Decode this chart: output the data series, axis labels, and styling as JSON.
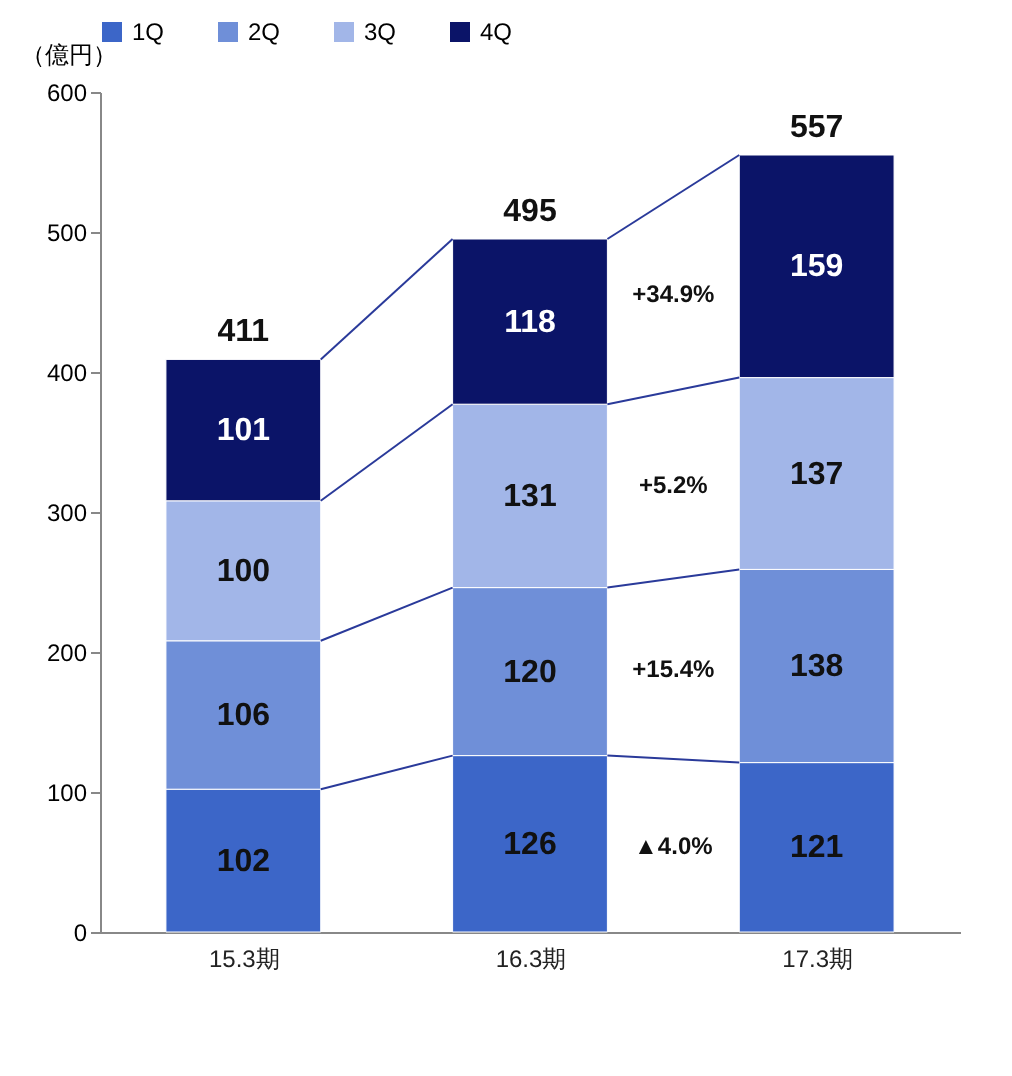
{
  "chart_data": {
    "type": "bar",
    "stacked": true,
    "ylabel": "（億円）",
    "categories": [
      "15.3期",
      "16.3期",
      "17.3期"
    ],
    "series": [
      {
        "name": "1Q",
        "color": "#3c66c8",
        "values": [
          102,
          126,
          121
        ]
      },
      {
        "name": "2Q",
        "color": "#6f8fd8",
        "values": [
          106,
          120,
          138
        ]
      },
      {
        "name": "3Q",
        "color": "#a2b6e8",
        "values": [
          100,
          131,
          137
        ]
      },
      {
        "name": "4Q",
        "color": "#0b1468",
        "values": [
          101,
          118,
          159
        ]
      }
    ],
    "totals": [
      "411",
      "495",
      "557"
    ],
    "data_labels": true,
    "annotations": [
      "+34.9%",
      "+5.2%",
      "+15.4%",
      "▲4.0%"
    ],
    "ylim": [
      0,
      600
    ],
    "yticks": [
      0,
      100,
      200,
      300,
      400,
      500,
      600
    ],
    "grid": false,
    "legend": "top"
  }
}
